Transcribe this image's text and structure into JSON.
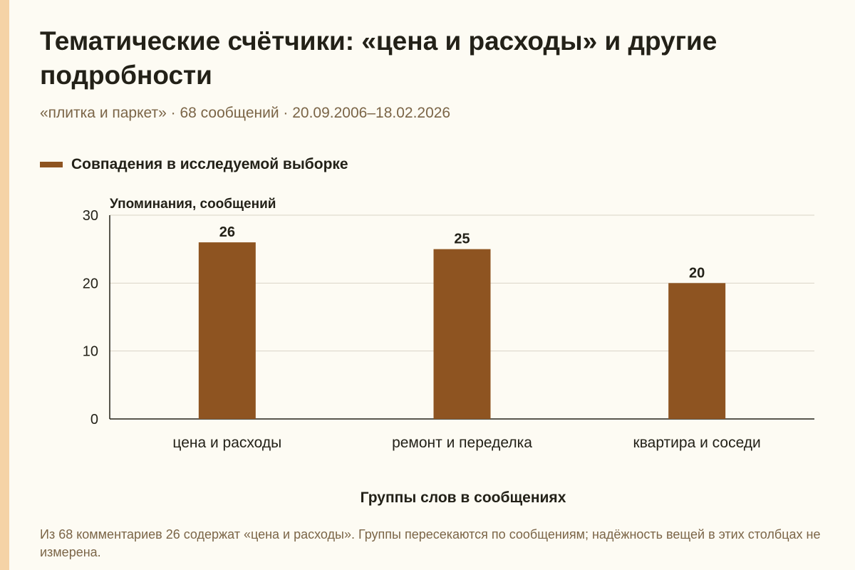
{
  "title": "Тематические счётчики: «цена и расходы» и другие подробности",
  "subtitle": "«плитка и паркет» · 68 сообщений · 20.09.2006–18.02.2026",
  "footnote": "Из 68 комментариев 26 содержат «цена и расходы». Группы пересекаются по сообщениям; надёжность вещей в этих столбцах не измерена.",
  "colors": {
    "bar": "#8e5421",
    "grid": "#d9d4c6",
    "axis": "#232118",
    "background": "#fdfbf3",
    "accent_strip": "#f5d3a6"
  },
  "chart_data": {
    "type": "bar",
    "categories": [
      "цена и расходы",
      "ремонт и переделка",
      "квартира и соседи"
    ],
    "series": [
      {
        "name": "Совпадения в исследуемой выборке",
        "values": [
          26,
          25,
          20
        ]
      }
    ],
    "data_labels": [
      "26",
      "25",
      "20"
    ],
    "xlabel": "Группы слов в сообщениях",
    "ylabel": "Упоминания, сообщений",
    "ylim": [
      0,
      30
    ],
    "yticks": [
      0,
      10,
      20,
      30
    ],
    "grid": true,
    "legend": "top-left"
  }
}
